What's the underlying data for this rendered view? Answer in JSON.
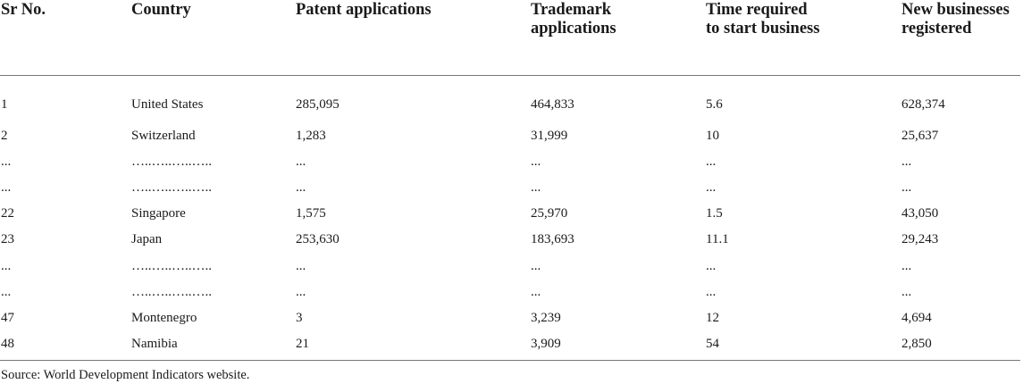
{
  "table": {
    "headers": [
      "Sr No.",
      "Country",
      "Patent applications",
      "Trademark applications",
      "Time required to start business",
      "New businesses registered"
    ],
    "rows": [
      [
        "1",
        "United States",
        "285,095",
        "464,833",
        "5.6",
        "628,374"
      ],
      [
        "2",
        "Switzerland",
        "1,283",
        "31,999",
        "10",
        "25,637"
      ],
      [
        "...",
        "…..…..…..…..",
        "...",
        "...",
        "...",
        "..."
      ],
      [
        "...",
        "…..…..…..…..",
        "...",
        "...",
        "...",
        "..."
      ],
      [
        "22",
        "Singapore",
        "1,575",
        "25,970",
        "1.5",
        "43,050"
      ],
      [
        "23",
        "Japan",
        "253,630",
        "183,693",
        "11.1",
        "29,243"
      ],
      [
        "...",
        "…..…..…..…..",
        "...",
        "...",
        "...",
        "..."
      ],
      [
        "...",
        "…..…..…..…..",
        "...",
        "...",
        "...",
        "..."
      ],
      [
        "47",
        "Montenegro",
        "3",
        "3,239",
        "12",
        "4,694"
      ],
      [
        "48",
        "Namibia",
        "21",
        "3,909",
        "54",
        "2,850"
      ]
    ]
  },
  "source_note": "Source: World Development Indicators website."
}
